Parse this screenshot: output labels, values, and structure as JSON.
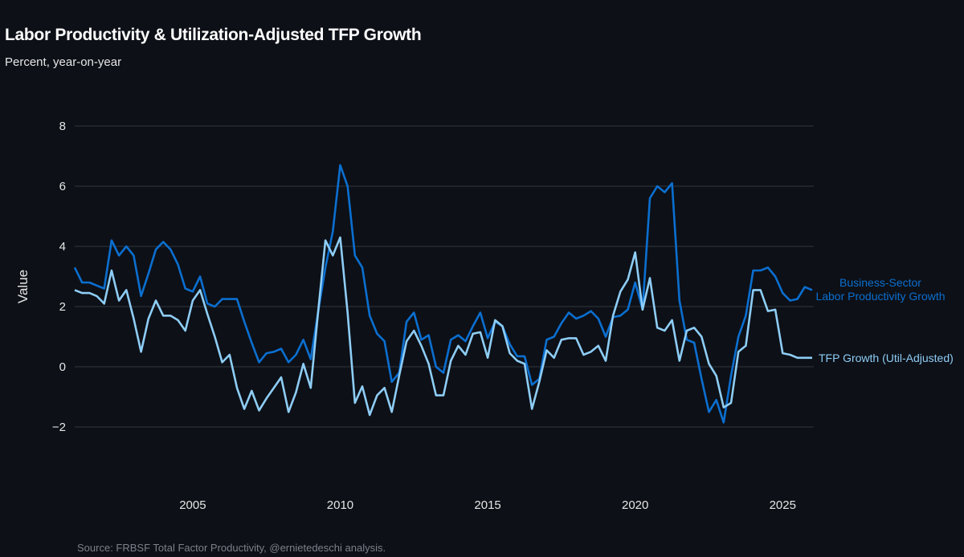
{
  "title": "Labor Productivity & Utilization-Adjusted TFP Growth",
  "subtitle": "Percent, year-on-year",
  "source": "Source: FRBSF Total Factor Productivity, @ernietedeschi analysis.",
  "chart_data": {
    "type": "line",
    "title": "Labor Productivity & Utilization-Adjusted TFP Growth",
    "subtitle": "Percent, year-on-year",
    "xlabel": "",
    "ylabel": "Value",
    "xlim": [
      2001,
      2026
    ],
    "ylim": [
      -3.8,
      9
    ],
    "x_ticks": [
      2005,
      2010,
      2015,
      2020,
      2025
    ],
    "y_ticks": [
      -2,
      0,
      2,
      4,
      6,
      8
    ],
    "y_tick_labels": [
      "−2",
      "0",
      "2",
      "4",
      "6",
      "8"
    ],
    "grid": "horizontal",
    "legend": "direct labels at right end",
    "background": "#0d1017",
    "x": [
      "2001Q1",
      "2001Q2",
      "2001Q3",
      "2001Q4",
      "2002Q1",
      "2002Q2",
      "2002Q3",
      "2002Q4",
      "2003Q1",
      "2003Q2",
      "2003Q3",
      "2003Q4",
      "2004Q1",
      "2004Q2",
      "2004Q3",
      "2004Q4",
      "2005Q1",
      "2005Q2",
      "2005Q3",
      "2005Q4",
      "2006Q1",
      "2006Q2",
      "2006Q3",
      "2006Q4",
      "2007Q1",
      "2007Q2",
      "2007Q3",
      "2007Q4",
      "2008Q1",
      "2008Q2",
      "2008Q3",
      "2008Q4",
      "2009Q1",
      "2009Q2",
      "2009Q3",
      "2009Q4",
      "2010Q1",
      "2010Q2",
      "2010Q3",
      "2010Q4",
      "2011Q1",
      "2011Q2",
      "2011Q3",
      "2011Q4",
      "2012Q1",
      "2012Q2",
      "2012Q3",
      "2012Q4",
      "2013Q1",
      "2013Q2",
      "2013Q3",
      "2013Q4",
      "2014Q1",
      "2014Q2",
      "2014Q3",
      "2014Q4",
      "2015Q1",
      "2015Q2",
      "2015Q3",
      "2015Q4",
      "2016Q1",
      "2016Q2",
      "2016Q3",
      "2016Q4",
      "2017Q1",
      "2017Q2",
      "2017Q3",
      "2017Q4",
      "2018Q1",
      "2018Q2",
      "2018Q3",
      "2018Q4",
      "2019Q1",
      "2019Q2",
      "2019Q3",
      "2019Q4",
      "2020Q1",
      "2020Q2",
      "2020Q3",
      "2020Q4",
      "2021Q1",
      "2021Q2",
      "2021Q3",
      "2021Q4",
      "2022Q1",
      "2022Q2",
      "2022Q3",
      "2022Q4",
      "2023Q1",
      "2023Q2",
      "2023Q3",
      "2023Q4",
      "2024Q1",
      "2024Q2",
      "2024Q3",
      "2024Q4",
      "2025Q1",
      "2025Q2",
      "2025Q3",
      "2025Q4",
      "2026Q1"
    ],
    "series": [
      {
        "name": "Business-Sector Labor Productivity Growth",
        "label_lines": [
          "Business-Sector",
          "Labor Productivity Growth"
        ],
        "color": "#0b6fd0",
        "values": [
          3.3,
          2.8,
          2.8,
          2.7,
          2.6,
          4.2,
          3.7,
          4.0,
          3.7,
          2.35,
          3.1,
          3.9,
          4.15,
          3.9,
          3.4,
          2.6,
          2.5,
          3.0,
          2.1,
          2.0,
          2.25,
          2.25,
          2.25,
          1.5,
          0.8,
          0.15,
          0.45,
          0.5,
          0.6,
          0.15,
          0.4,
          0.9,
          0.25,
          1.8,
          3.3,
          4.5,
          6.7,
          6.0,
          3.7,
          3.3,
          1.7,
          1.1,
          0.85,
          -0.5,
          -0.2,
          1.5,
          1.8,
          0.9,
          1.05,
          0.0,
          -0.2,
          0.9,
          1.05,
          0.85,
          1.35,
          1.8,
          0.95,
          1.5,
          1.35,
          0.75,
          0.35,
          0.35,
          -0.6,
          -0.4,
          0.9,
          1.0,
          1.45,
          1.8,
          1.6,
          1.7,
          1.85,
          1.6,
          1.0,
          1.65,
          1.7,
          1.9,
          2.8,
          1.9,
          5.6,
          6.0,
          5.8,
          6.1,
          2.2,
          0.9,
          0.8,
          -0.4,
          -1.5,
          -1.1,
          -1.85,
          -0.3,
          1.0,
          1.7,
          3.2,
          3.2,
          3.3,
          3.0,
          2.45,
          2.2,
          2.25,
          2.65,
          2.55
        ]
      },
      {
        "name": "TFP Growth (Util-Adjusted)",
        "label_lines": [
          "TFP Growth (Util-Adjusted)"
        ],
        "color": "#8ecdf5",
        "values": [
          2.55,
          2.45,
          2.45,
          2.35,
          2.1,
          3.2,
          2.2,
          2.55,
          1.6,
          0.5,
          1.6,
          2.2,
          1.7,
          1.7,
          1.55,
          1.2,
          2.2,
          2.55,
          1.75,
          1.0,
          0.15,
          0.4,
          -0.7,
          -1.4,
          -0.8,
          -1.45,
          -1.05,
          -0.7,
          -0.35,
          -1.5,
          -0.85,
          0.1,
          -0.7,
          1.8,
          4.2,
          3.7,
          4.3,
          1.8,
          -1.2,
          -0.65,
          -1.6,
          -0.95,
          -0.7,
          -1.5,
          -0.3,
          0.85,
          1.2,
          0.7,
          0.1,
          -0.95,
          -0.95,
          0.2,
          0.7,
          0.4,
          1.1,
          1.15,
          0.3,
          1.55,
          1.35,
          0.45,
          0.2,
          0.1,
          -1.4,
          -0.5,
          0.55,
          0.3,
          0.9,
          0.95,
          0.95,
          0.4,
          0.5,
          0.7,
          0.2,
          1.7,
          2.5,
          2.9,
          3.8,
          1.9,
          2.95,
          1.3,
          1.2,
          1.55,
          0.2,
          1.2,
          1.3,
          1.0,
          0.1,
          -0.3,
          -1.35,
          -1.2,
          0.5,
          0.7,
          2.55,
          2.55,
          1.85,
          1.9,
          0.45,
          0.4,
          0.3,
          0.3,
          0.3
        ]
      }
    ]
  }
}
